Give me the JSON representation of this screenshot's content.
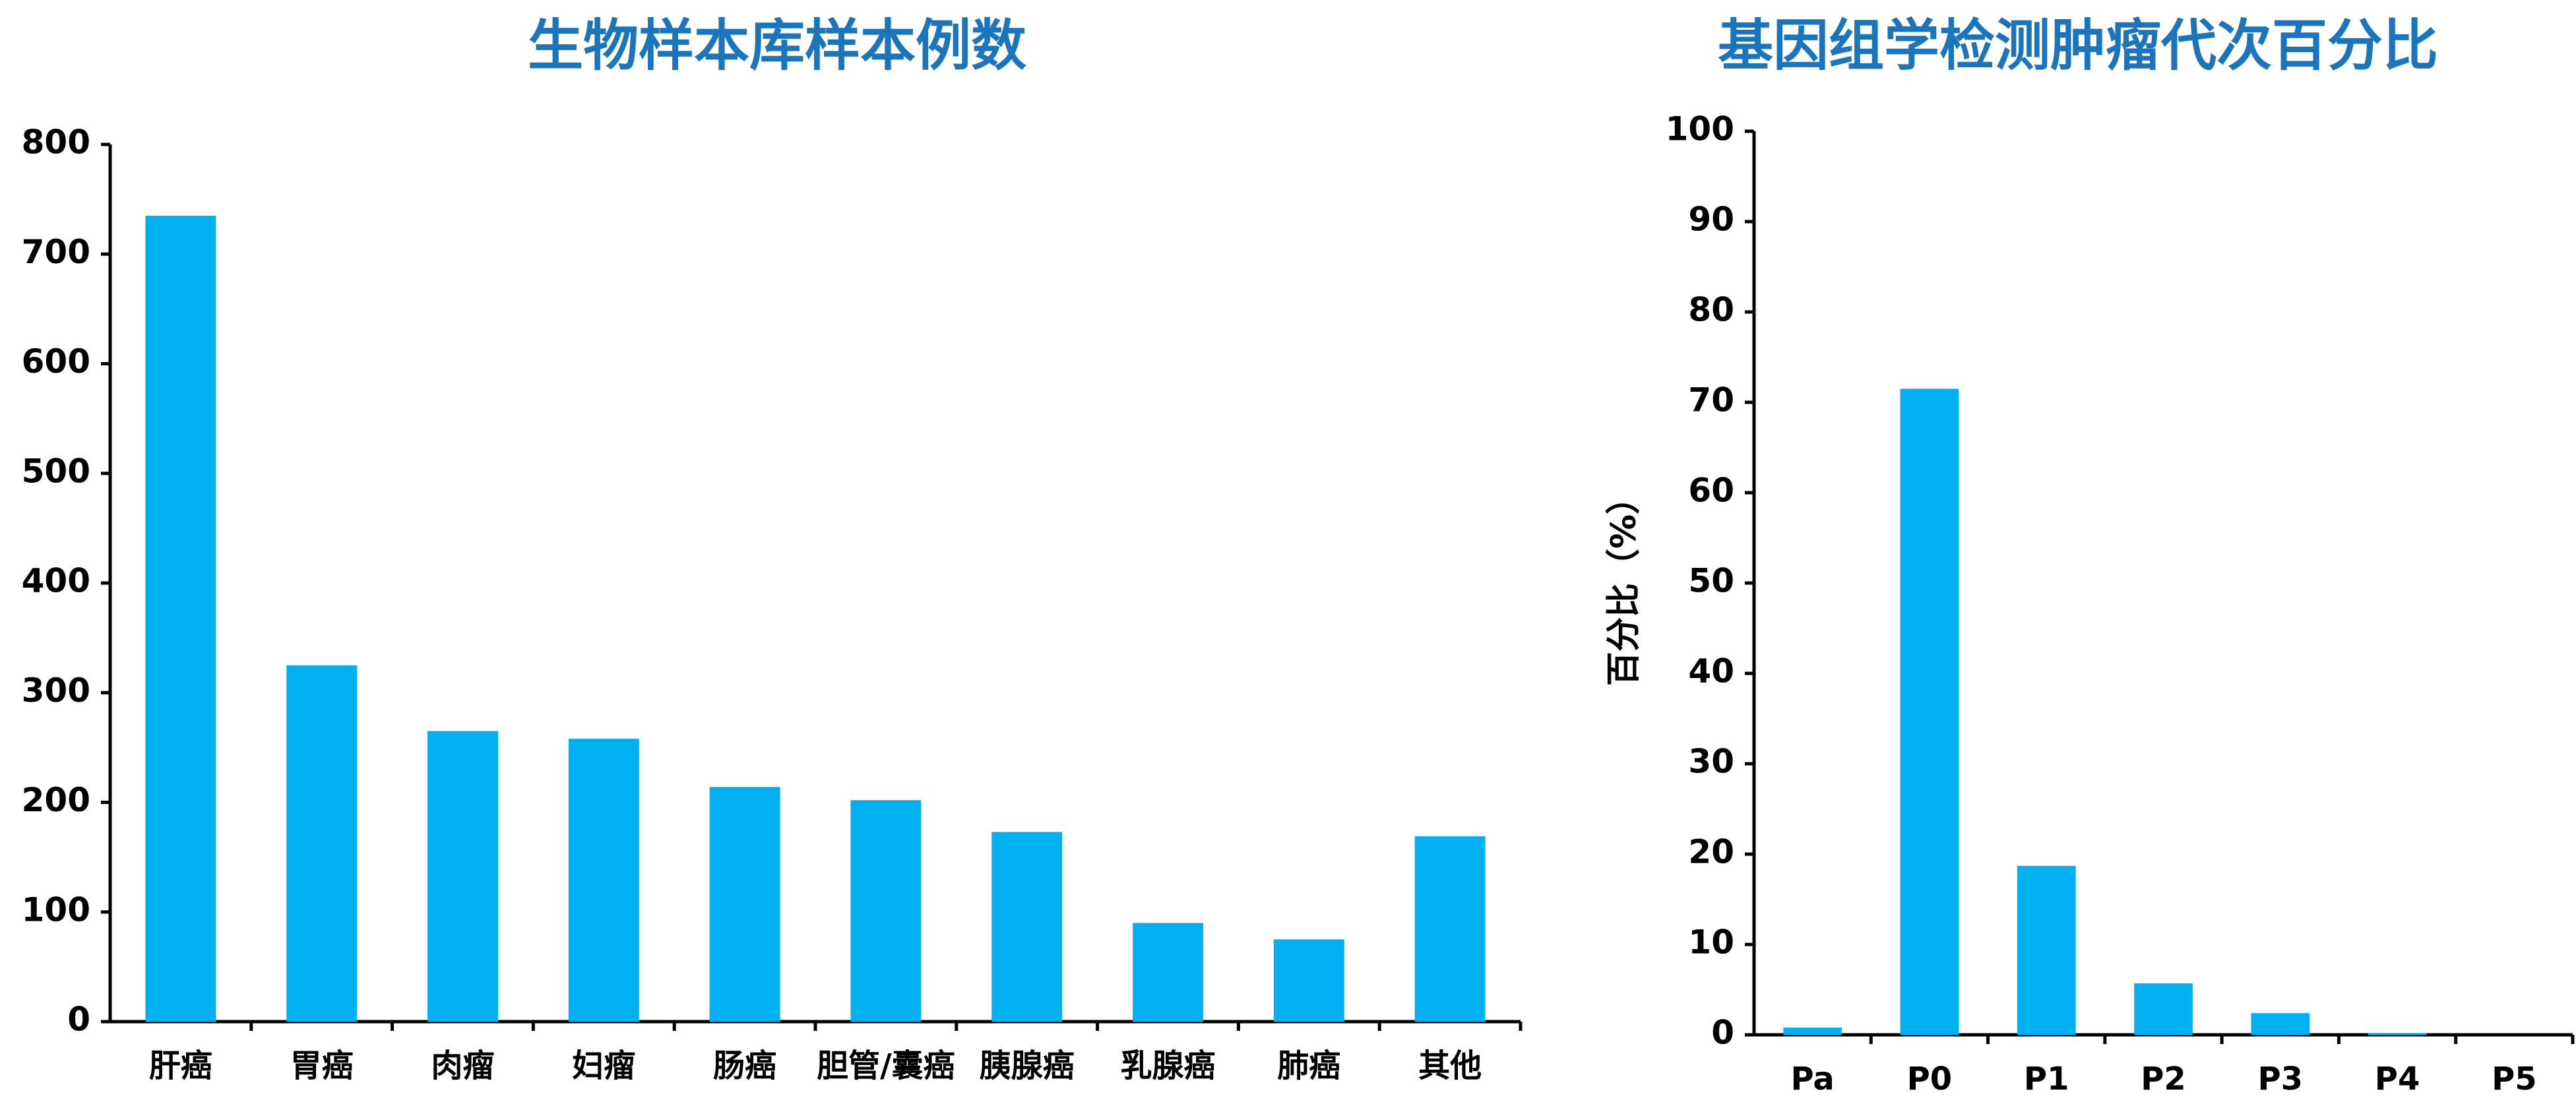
{
  "chart_data": [
    {
      "type": "bar",
      "title": "生物样本库样本例数",
      "categories": [
        "肝癌",
        "胃癌",
        "肉瘤",
        "妇瘤",
        "肠癌",
        "胆管/囊癌",
        "胰腺癌",
        "乳腺癌",
        "肺癌",
        "其他"
      ],
      "values": [
        735,
        325,
        265,
        258,
        214,
        202,
        173,
        90,
        75,
        169
      ],
      "color": "#00b0f0",
      "ylim": [
        0,
        800
      ],
      "yticks": [
        0,
        100,
        200,
        300,
        400,
        500,
        600,
        700,
        800
      ],
      "grid": false
    },
    {
      "type": "bar",
      "title": "基因组学检测肿瘤代次百分比",
      "y_label": "百分比（%）",
      "categories": [
        "Pa",
        "P0",
        "P1",
        "P2",
        "P3",
        "P4",
        "P5"
      ],
      "values": [
        0.8,
        71.5,
        18.7,
        5.7,
        2.4,
        0.2,
        0
      ],
      "color": "#00b0f0",
      "ylim": [
        0,
        100
      ],
      "yticks": [
        0,
        10,
        20,
        30,
        40,
        50,
        60,
        70,
        80,
        90,
        100
      ],
      "grid": false
    }
  ]
}
